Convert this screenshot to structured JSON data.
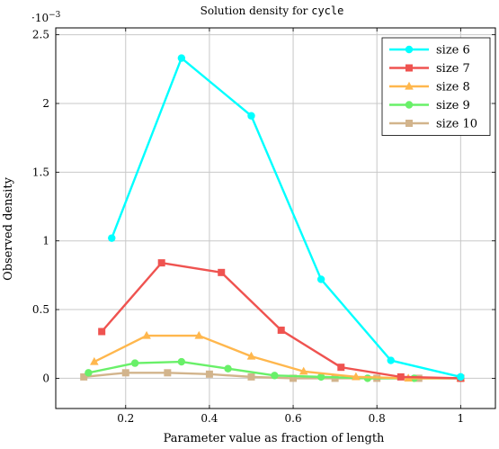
{
  "chart_data": {
    "type": "line",
    "title": {
      "prefix": "Solution density for ",
      "code": "cycle"
    },
    "xlabel": "Parameter value as fraction of length",
    "ylabel": "Observed density",
    "y_scale_note": {
      "base": "·10",
      "exponent": "−3"
    },
    "xlim": [
      0.033,
      1.083
    ],
    "ylim": [
      -0.22,
      2.55
    ],
    "x_ticks": [
      0.2,
      0.4,
      0.6,
      0.8,
      1.0
    ],
    "x_tick_labels": [
      "0.2",
      "0.4",
      "0.6",
      "0.8",
      "1"
    ],
    "y_ticks": [
      0,
      0.5,
      1,
      1.5,
      2,
      2.5
    ],
    "y_tick_labels": [
      "0",
      "0.5",
      "1",
      "1.5",
      "2",
      "2.5"
    ],
    "grid": true,
    "legend_position": "top-right",
    "series": [
      {
        "name": "size 6",
        "color": "#00ffff",
        "marker": "circle",
        "x": [
          0.1667,
          0.3333,
          0.5,
          0.6667,
          0.8333,
          1.0
        ],
        "y": [
          1.02,
          2.33,
          1.91,
          0.72,
          0.13,
          0.01
        ]
      },
      {
        "name": "size 7",
        "color": "#ef5350",
        "marker": "square",
        "x": [
          0.1429,
          0.2857,
          0.4286,
          0.5714,
          0.7143,
          0.8571,
          1.0
        ],
        "y": [
          0.34,
          0.84,
          0.77,
          0.35,
          0.08,
          0.01,
          0.0
        ]
      },
      {
        "name": "size 8",
        "color": "#ffb74d",
        "marker": "triangle",
        "x": [
          0.125,
          0.25,
          0.375,
          0.5,
          0.625,
          0.75,
          0.875,
          1.0
        ],
        "y": [
          0.12,
          0.31,
          0.31,
          0.16,
          0.05,
          0.01,
          0.0,
          0.0
        ]
      },
      {
        "name": "size 9",
        "color": "#69f069",
        "marker": "circle",
        "x": [
          0.1111,
          0.2222,
          0.3333,
          0.4444,
          0.5556,
          0.6667,
          0.7778,
          0.8889,
          1.0
        ],
        "y": [
          0.04,
          0.11,
          0.12,
          0.07,
          0.02,
          0.01,
          0.0,
          0.0,
          0.0
        ]
      },
      {
        "name": "size 10",
        "color": "#d2b48c",
        "marker": "square",
        "x": [
          0.1,
          0.2,
          0.3,
          0.4,
          0.5,
          0.6,
          0.7,
          0.8,
          0.9,
          1.0
        ],
        "y": [
          0.01,
          0.04,
          0.04,
          0.03,
          0.01,
          0.0,
          0.0,
          0.0,
          0.0,
          0.0
        ]
      }
    ]
  }
}
